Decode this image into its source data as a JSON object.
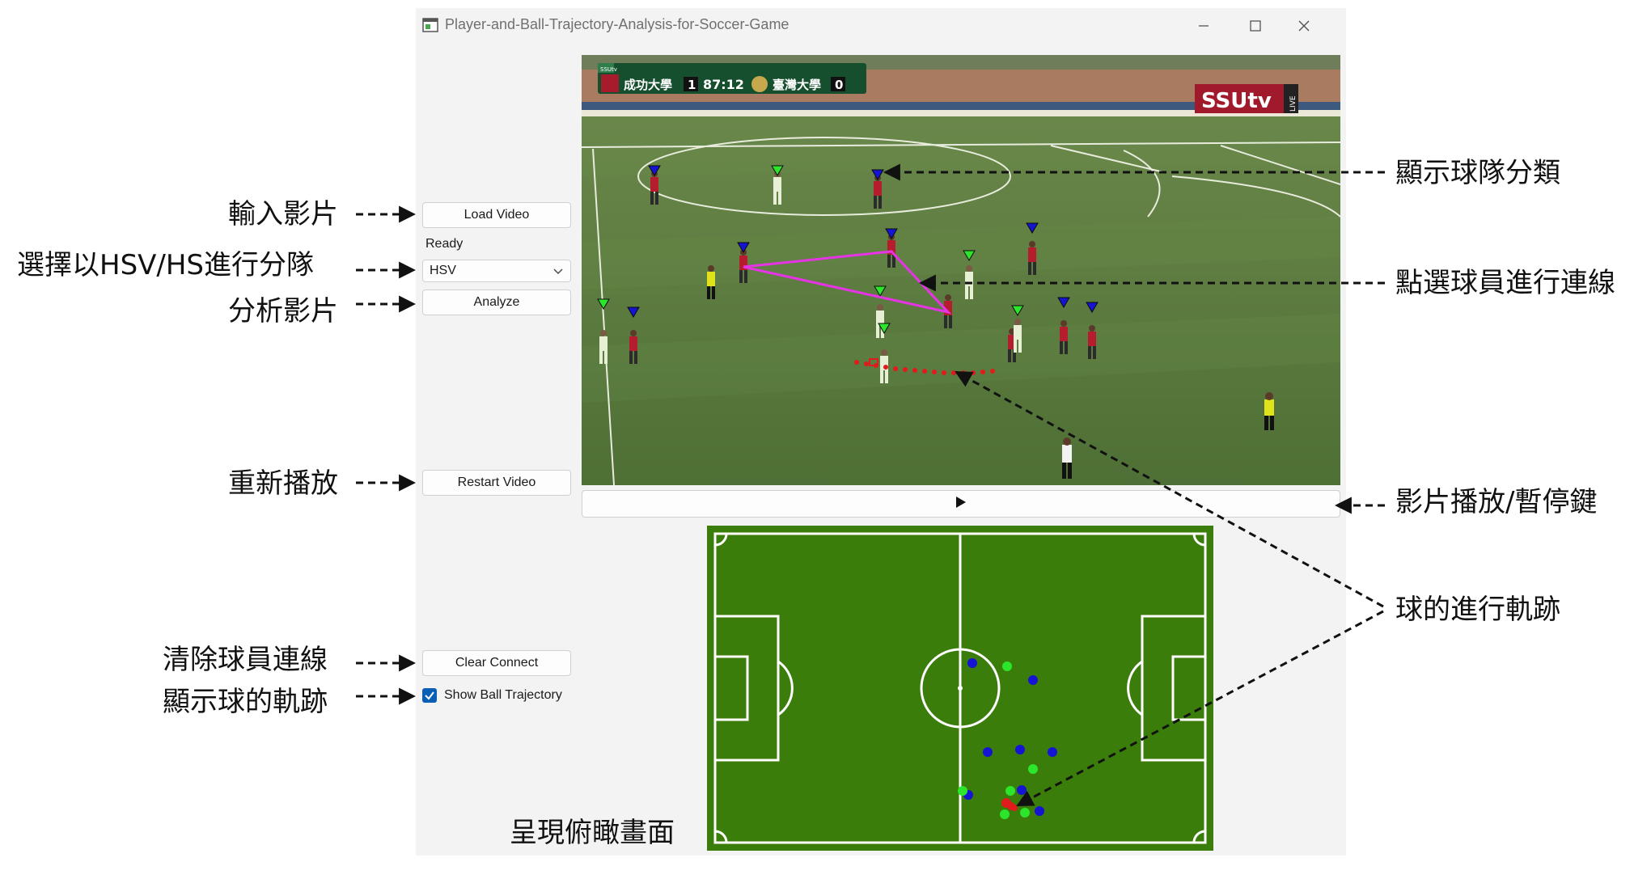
{
  "window": {
    "title": "Player-and-Ball-Trajectory-Analysis-for-Soccer-Game"
  },
  "controls": {
    "load_video": "Load Video",
    "status": "Ready",
    "mode_select": {
      "value": "HSV"
    },
    "analyze": "Analyze",
    "restart_video": "Restart Video",
    "clear_connect": "Clear Connect",
    "show_ball_trajectory": {
      "label": "Show Ball Trajectory",
      "checked": true
    }
  },
  "video": {
    "scoreboard": {
      "channel": "SSUtv",
      "home_team": "成功大學",
      "home_score": "1",
      "clock": "87:12",
      "away_team": "臺灣大學",
      "away_score": "0"
    },
    "broadcaster_logo": "SSUtv",
    "live_badge": "LIVE"
  },
  "annotations": {
    "load_video": "輸入影片",
    "select_mode": "選擇以HSV/HS進行分隊",
    "analyze": "分析影片",
    "restart": "重新播放",
    "clear_connect": "清除球員連線",
    "show_trajectory": "顯示球的軌跡",
    "team_classification": "顯示球隊分類",
    "player_connect": "點選球員進行連線",
    "play_pause": "影片播放/暫停鍵",
    "ball_trajectory": "球的進行軌跡",
    "top_view": "呈現俯瞰畫面"
  },
  "colors": {
    "team_red_marker": "#1414d2",
    "team_white_marker": "#2be62b",
    "connect_line": "#e633e6",
    "ball_trail": "#e01b1b",
    "pitch_green": "#3a7d0a",
    "checkbox_blue": "#0a5fb4"
  }
}
